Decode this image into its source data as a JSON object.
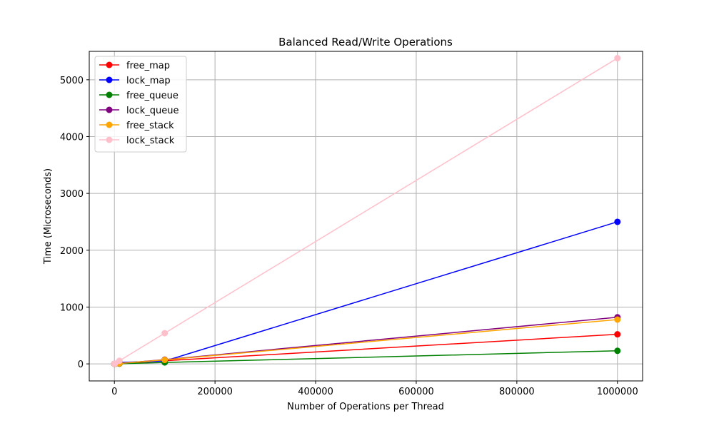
{
  "chart_data": {
    "type": "line",
    "title": "Balanced Read/Write Operations",
    "xlabel": "Number of Operations per Thread",
    "ylabel": "Time (Microseconds)",
    "xlim": [
      -50000,
      1050000
    ],
    "ylim": [
      -300,
      5500
    ],
    "xticks": [
      0,
      200000,
      400000,
      600000,
      800000,
      1000000
    ],
    "yticks": [
      0,
      1000,
      2000,
      3000,
      4000,
      5000
    ],
    "grid": true,
    "legend_position": "top-left",
    "x": [
      100,
      1000,
      10000,
      100000,
      1000000
    ],
    "series": [
      {
        "name": "free_map",
        "color": "#ff0000",
        "values": [
          0.1,
          0.7,
          6,
          55,
          520
        ]
      },
      {
        "name": "lock_map",
        "color": "#0000ff",
        "values": [
          0.3,
          2.5,
          25,
          50,
          2500
        ]
      },
      {
        "name": "free_queue",
        "color": "#008000",
        "values": [
          0.05,
          0.3,
          3,
          25,
          230
        ]
      },
      {
        "name": "lock_queue",
        "color": "#800080",
        "values": [
          0.1,
          1,
          8,
          75,
          820
        ]
      },
      {
        "name": "free_stack",
        "color": "#ffa500",
        "values": [
          0.1,
          1,
          8,
          70,
          780
        ]
      },
      {
        "name": "lock_stack",
        "color": "#ffc0cb",
        "values": [
          0.6,
          5.5,
          55,
          540,
          5380
        ]
      }
    ]
  }
}
